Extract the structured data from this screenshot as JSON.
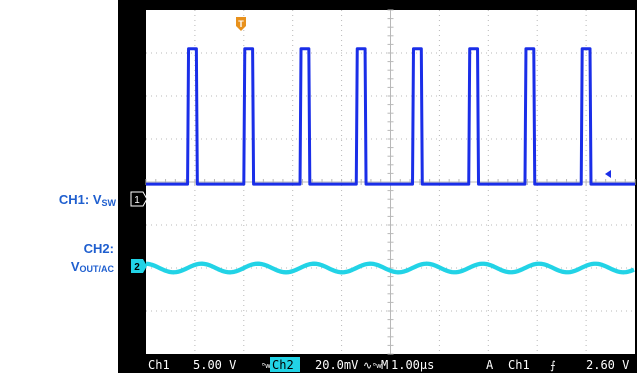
{
  "labels": {
    "ch1_main": "CH1: V",
    "ch1_sub": "SW",
    "ch2_title": "CH2:",
    "ch2_main": "V",
    "ch2_sub": "OUT/AC"
  },
  "status_bar": {
    "ch1_name": "Ch1",
    "ch1_scale": "5.00 V",
    "ch2_name": "Ch2",
    "ch2_scale": "20.0mV",
    "bw_mark": "ᴮw",
    "ac_symbol": "∿",
    "timebase_prefix": "M",
    "timebase": "1.00µs",
    "trigger_mode": "A",
    "trigger_source": "Ch1",
    "trigger_slope": "⨍",
    "trigger_level": "2.60 V"
  },
  "markers": {
    "ch1": "1",
    "ch2": "2",
    "trigger": "T"
  },
  "colors": {
    "ch1": "#1a2ee8",
    "ch2": "#22d3e6",
    "grid": "#b8b8b8",
    "screen": "#ffffff",
    "bezel": "#000000",
    "trigger": "#e8911c",
    "side_label": "#1f5fcf"
  },
  "chart_data": {
    "type": "line",
    "grid": true,
    "x_divisions": 10,
    "y_divisions": 8,
    "series": [
      {
        "name": "CH1",
        "waveform": "pulse",
        "baseline_div": -0.05,
        "high_div": 3.1,
        "period_div": 1.15,
        "first_edge_div": 0.85,
        "pulse_width_div": 0.2,
        "pulse_count": 8
      },
      {
        "name": "CH2",
        "waveform": "ripple",
        "offset_div": -2.0,
        "amplitude_div": 0.1,
        "period_div": 1.15,
        "thickness_div": 0.1
      }
    ]
  }
}
